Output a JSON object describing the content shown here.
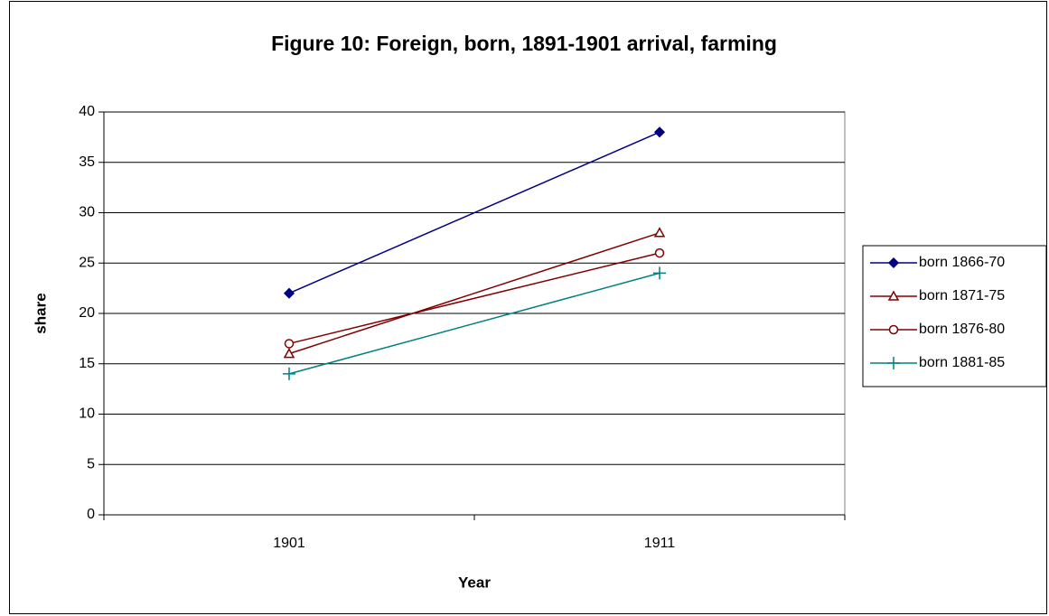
{
  "chart_data": {
    "type": "line",
    "title": "Figure 10: Foreign, born, 1891-1901 arrival, farming",
    "x_label": "Year",
    "y_label": "share",
    "categories": [
      "1901",
      "1911"
    ],
    "series": [
      {
        "name": "born 1866-70",
        "color": "#000080",
        "marker": "diamond",
        "values": [
          22,
          38
        ]
      },
      {
        "name": "born 1871-75",
        "color": "#800000",
        "marker": "triangle",
        "values": [
          16,
          28
        ]
      },
      {
        "name": "born 1876-80",
        "color": "#800000",
        "marker": "circle",
        "values": [
          17,
          26
        ]
      },
      {
        "name": "born 1881-85",
        "color": "#008080",
        "marker": "plus",
        "values": [
          14,
          24
        ]
      }
    ],
    "ylim": [
      0,
      40
    ],
    "yticks": [
      0,
      5,
      10,
      15,
      20,
      25,
      30,
      35,
      40
    ],
    "grid": true,
    "legend": "right"
  }
}
